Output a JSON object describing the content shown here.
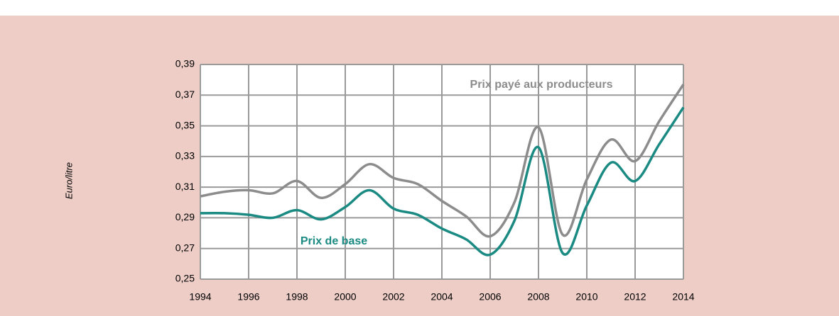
{
  "chart_data": {
    "type": "line",
    "y_label": "Euro/litre",
    "x": [
      1994,
      1995,
      1996,
      1997,
      1998,
      1999,
      2000,
      2001,
      2002,
      2003,
      2004,
      2005,
      2006,
      2007,
      2008,
      2009,
      2010,
      2011,
      2012,
      2013,
      2014
    ],
    "series": [
      {
        "name": "Prix payé aux producteurs",
        "color": "#8c8c8c",
        "values": [
          0.304,
          0.307,
          0.308,
          0.306,
          0.314,
          0.303,
          0.312,
          0.325,
          0.316,
          0.312,
          0.301,
          0.291,
          0.278,
          0.3,
          0.349,
          0.279,
          0.315,
          0.341,
          0.327,
          0.353,
          0.377
        ]
      },
      {
        "name": "Prix de base",
        "color": "#1a8a82",
        "values": [
          0.293,
          0.293,
          0.292,
          0.29,
          0.295,
          0.289,
          0.297,
          0.308,
          0.296,
          0.292,
          0.283,
          0.276,
          0.266,
          0.288,
          0.336,
          0.267,
          0.298,
          0.326,
          0.314,
          0.338,
          0.362
        ]
      }
    ],
    "xlim": [
      1994,
      2014
    ],
    "xticks": [
      1994,
      1996,
      1998,
      2000,
      2002,
      2004,
      2006,
      2008,
      2010,
      2012,
      2014
    ],
    "ylim": [
      0.25,
      0.39
    ],
    "yticks": [
      {
        "value": 0.25,
        "label": "0,25"
      },
      {
        "value": 0.27,
        "label": "0,27"
      },
      {
        "value": 0.29,
        "label": "0,29"
      },
      {
        "value": 0.31,
        "label": "0,31"
      },
      {
        "value": 0.33,
        "label": "0,33"
      },
      {
        "value": 0.35,
        "label": "0,35"
      },
      {
        "value": 0.37,
        "label": "0,37"
      },
      {
        "value": 0.39,
        "label": "0,39"
      }
    ],
    "grid": true
  }
}
